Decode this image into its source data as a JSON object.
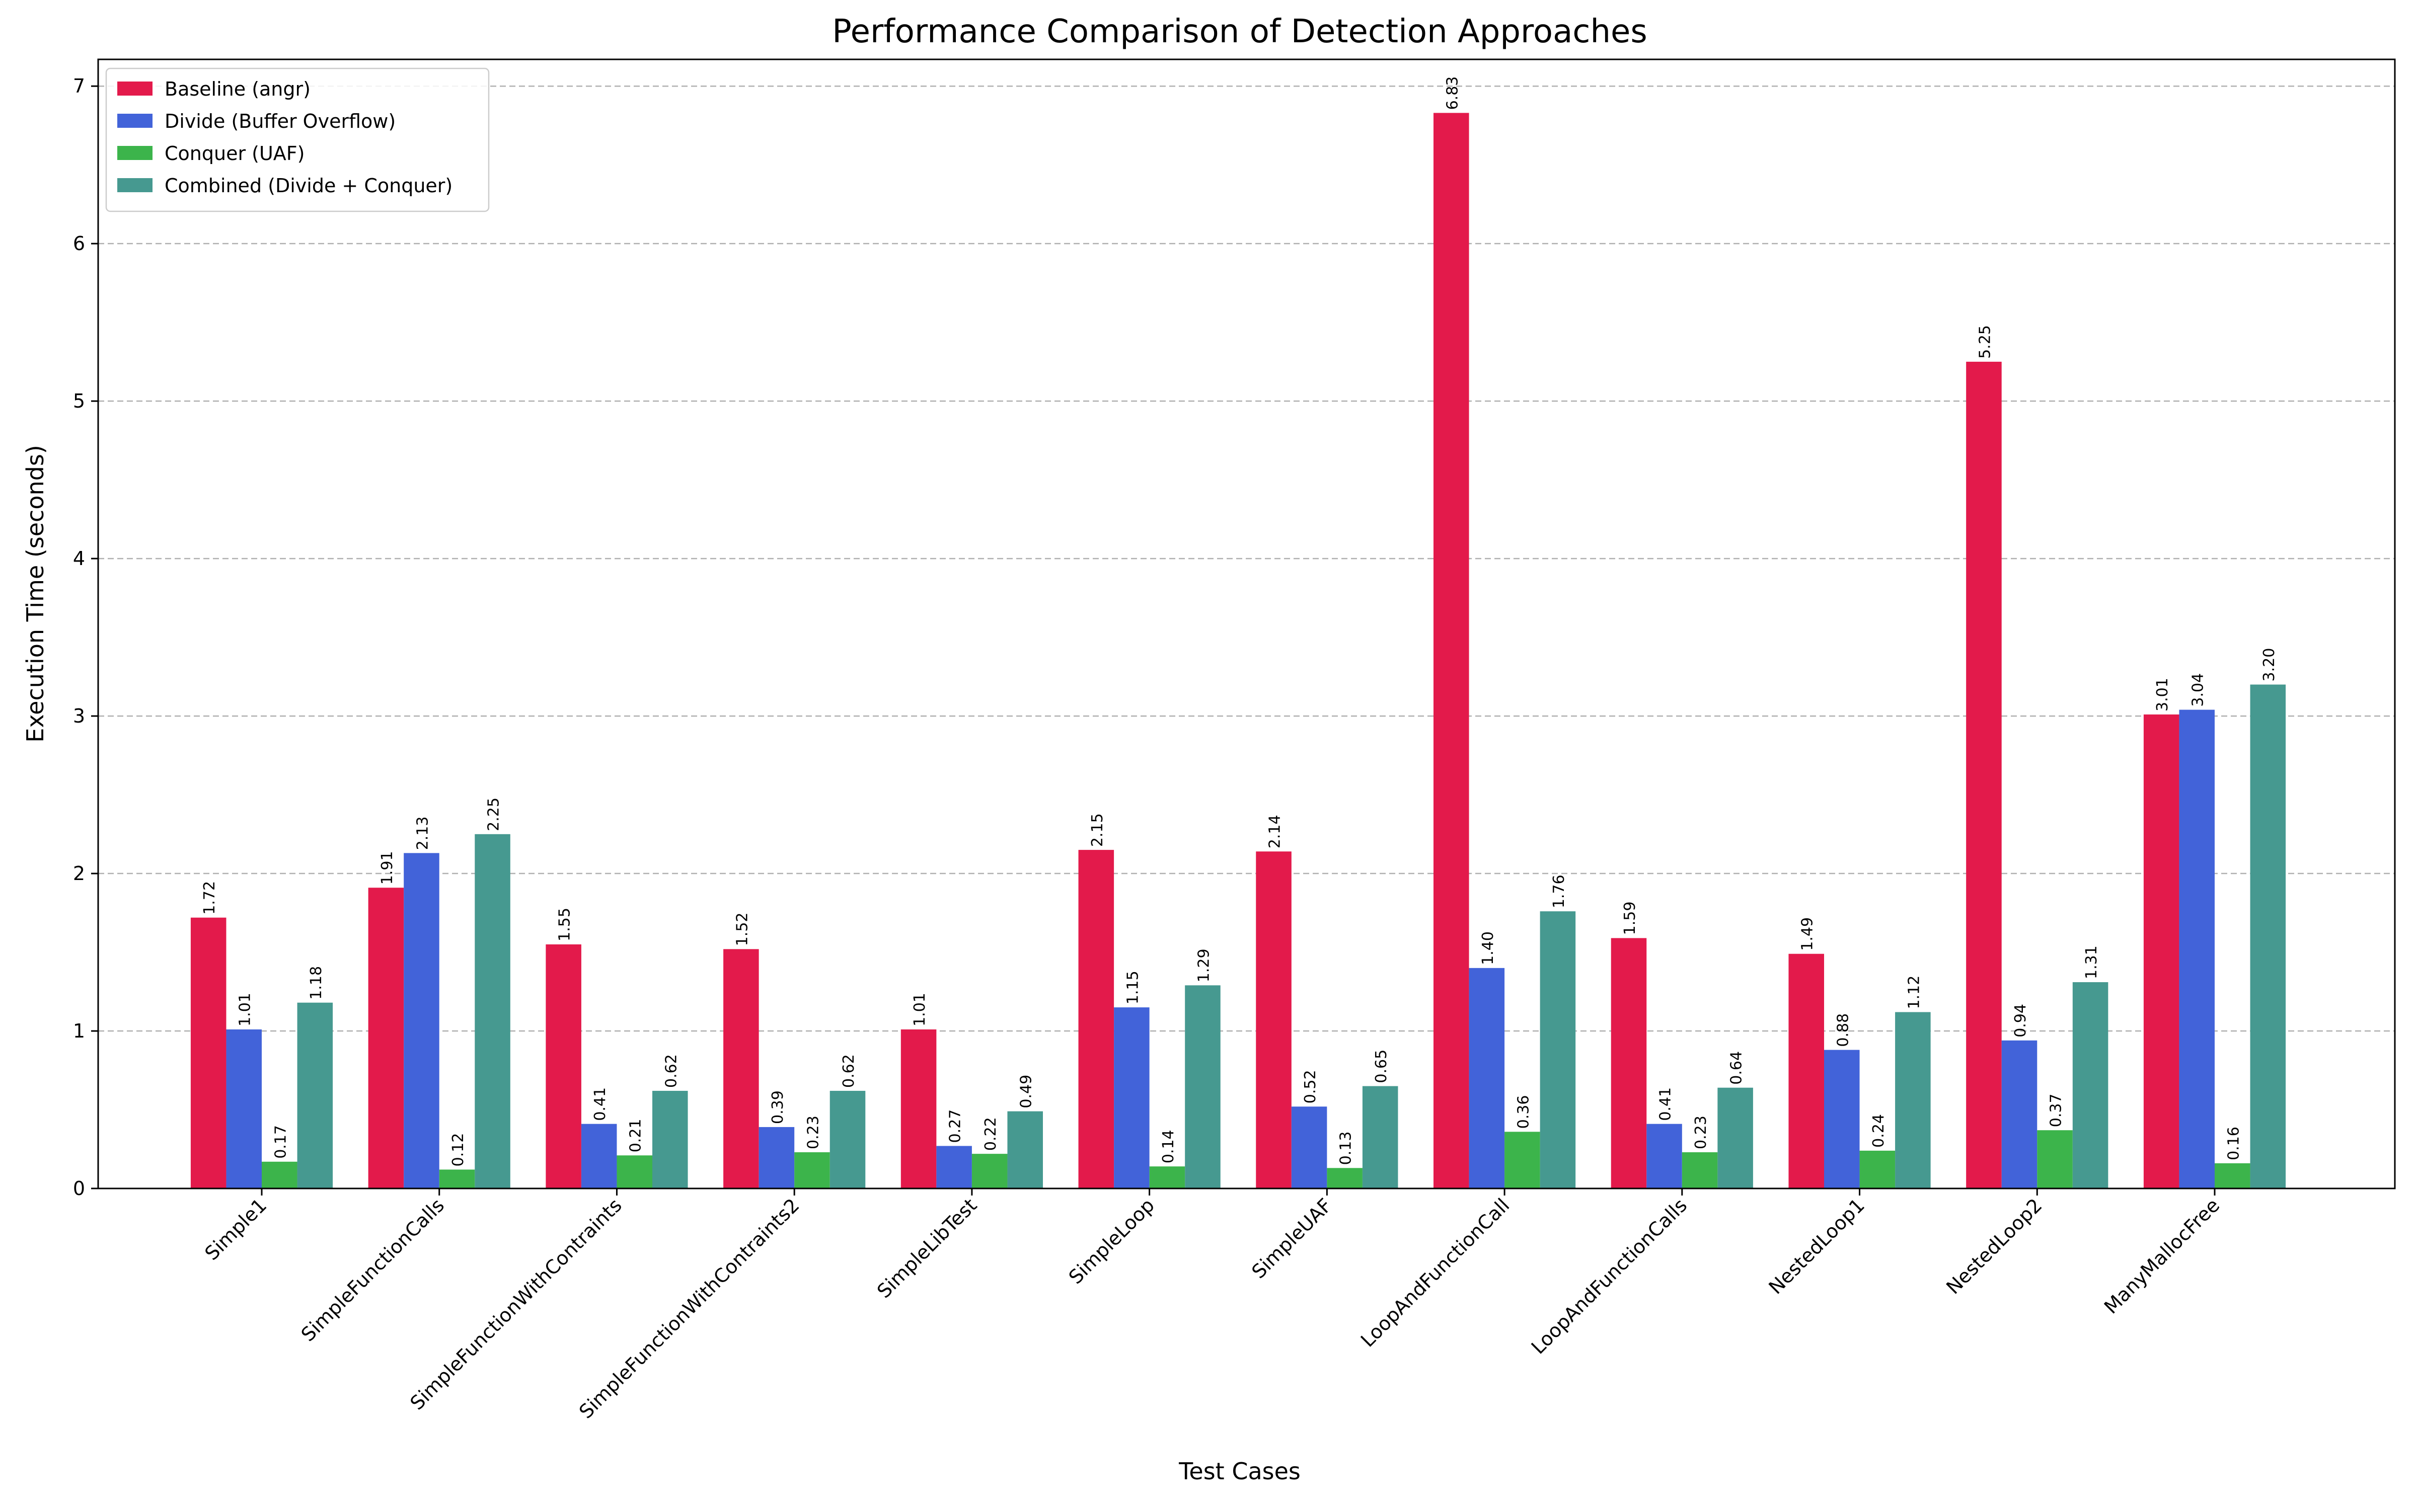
{
  "chart_data": {
    "type": "bar",
    "title": "Performance Comparison of Detection Approaches",
    "xlabel": "Test Cases",
    "ylabel": "Execution Time (seconds)",
    "ylim": [
      0,
      7.17
    ],
    "yticks": [
      0,
      1,
      2,
      3,
      4,
      5,
      6,
      7
    ],
    "grid": "y, dashed",
    "legend_position": "top-left",
    "categories": [
      "Simple1",
      "SimpleFunctionCalls",
      "SimpleFunctionWithContraints",
      "SimpleFunctionWithContraints2",
      "SimpleLibTest",
      "SimpleLoop",
      "SimpleUAF",
      "LoopAndFunctionCall",
      "LoopAndFunctionCalls",
      "NestedLoop1",
      "NestedLoop2",
      "ManyMallocFree"
    ],
    "series": [
      {
        "name": "Baseline (angr)",
        "color": "#e31a4b",
        "values": [
          1.72,
          1.91,
          1.55,
          1.52,
          1.01,
          2.15,
          2.14,
          6.83,
          1.59,
          1.49,
          5.25,
          3.01
        ],
        "labels": [
          "1.72",
          "1.91",
          "1.55",
          "1.52",
          "1.01",
          "2.15",
          "2.14",
          "6.83",
          "1.59",
          "1.49",
          "5.25",
          "3.01"
        ]
      },
      {
        "name": "Divide (Buffer Overflow)",
        "color": "#4263d9",
        "values": [
          1.01,
          2.13,
          0.41,
          0.39,
          0.27,
          1.15,
          0.52,
          1.4,
          0.41,
          0.88,
          0.94,
          3.04
        ],
        "labels": [
          "1.01",
          "2.13",
          "0.41",
          "0.39",
          "0.27",
          "1.15",
          "0.52",
          "1.40",
          "0.41",
          "0.88",
          "0.94",
          "3.04"
        ]
      },
      {
        "name": "Conquer (UAF)",
        "color": "#3cb44b",
        "values": [
          0.17,
          0.12,
          0.21,
          0.23,
          0.22,
          0.14,
          0.13,
          0.36,
          0.23,
          0.24,
          0.37,
          0.16
        ],
        "labels": [
          "0.17",
          "0.12",
          "0.21",
          "0.23",
          "0.22",
          "0.14",
          "0.13",
          "0.36",
          "0.23",
          "0.24",
          "0.37",
          "0.16"
        ]
      },
      {
        "name": "Combined (Divide + Conquer)",
        "color": "#469990",
        "values": [
          1.18,
          2.25,
          0.62,
          0.62,
          0.49,
          1.29,
          0.65,
          1.76,
          0.64,
          1.12,
          1.31,
          3.2
        ],
        "labels": [
          "1.18",
          "2.25",
          "0.62",
          "0.62",
          "0.49",
          "1.29",
          "0.65",
          "1.76",
          "0.64",
          "1.12",
          "1.31",
          "3.20"
        ]
      }
    ]
  }
}
